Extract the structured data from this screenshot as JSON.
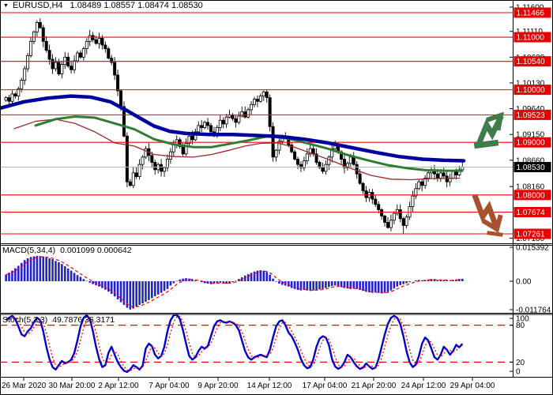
{
  "window": {
    "dropdown_glyph": "▼",
    "title_symbol": "EURUSD,H4",
    "title_ohlc": "1.08489 1.08557 1.08474 1.08530"
  },
  "indicators": {
    "macd_label": "MACD(5,34,4)",
    "macd_values": "0.001099 0.000642",
    "stoch_label": "Stoch(5,3,3)",
    "stoch_values": "49.7876 36.3171"
  },
  "colors": {
    "bg": "#ffffff",
    "border": "#000000",
    "axis_text": "#000000",
    "level_line": "#ff0000",
    "badge_bg": "#e60000",
    "badge_current_bg": "#000000",
    "badge_text": "#ffffff",
    "current_line": "#b4b4b4",
    "candle_outline": "#000000",
    "candle_bull": "#ffffff",
    "candle_bear": "#000000",
    "ma_blue": "#0000a0",
    "ma_green": "#2e7d32",
    "ma_red": "#9c2a2a",
    "macd_bar": "#2323cd",
    "macd_signal": "#ff0000",
    "stoch_k": "#0000cd",
    "stoch_d": "#ff0000",
    "stoch_level": "#ff0000",
    "arrow_up": "#3e7c49",
    "arrow_down": "#a8512e"
  },
  "chart_data": {
    "type": "candlestick",
    "symbol": "EURUSD",
    "timeframe": "H4",
    "main": {
      "ylim": [
        1.07081,
        1.11586
      ],
      "axis_ticks": [
        1.116,
        1.1111,
        1.1062,
        1.1013,
        1.0964,
        1.0915,
        1.0866,
        1.0816,
        1.0718
      ],
      "level_lines": [
        1.11466,
        1.11,
        1.1054,
        1.1,
        1.09523,
        1.09,
        1.08,
        1.07674,
        1.07261
      ],
      "current_price": 1.0853,
      "open_first": 1.098,
      "closes": [
        1.0985,
        1.0978,
        1.0992,
        1.0988,
        1.1002,
        1.1018,
        1.104,
        1.1065,
        1.1092,
        1.111,
        1.1128,
        1.1118,
        1.1092,
        1.1075,
        1.1058,
        1.104,
        1.1052,
        1.103,
        1.1048,
        1.1062,
        1.1045,
        1.1038,
        1.1055,
        1.107,
        1.1062,
        1.1078,
        1.1092,
        1.1103,
        1.1095,
        1.1088,
        1.1098,
        1.1085,
        1.1078,
        1.106,
        1.1052,
        1.1028,
        1.0998,
        1.0968,
        1.0912,
        1.0825,
        1.0818,
        1.0842,
        1.0835,
        1.0858,
        1.0872,
        1.0888,
        1.0875,
        1.0862,
        1.0848,
        1.0858,
        1.0845,
        1.0852,
        1.0868,
        1.0882,
        1.0895,
        1.0905,
        1.0892,
        1.0878,
        1.0898,
        1.0912,
        1.0905,
        1.092,
        1.0932,
        1.0928,
        1.0938,
        1.0932,
        1.092,
        1.0912,
        1.0928,
        1.0942,
        1.0935,
        1.0948,
        1.0952,
        1.0945,
        1.0938,
        1.095,
        1.0958,
        1.0948,
        1.0962,
        1.0972,
        1.0982,
        1.0978,
        1.0988,
        1.0996,
        1.0985,
        1.093,
        1.0872,
        1.0885,
        1.0902,
        1.0912,
        1.0908,
        1.0895,
        1.0882,
        1.0868,
        1.0858,
        1.0852,
        1.0865,
        1.0878,
        1.0888,
        1.0878,
        1.0862,
        1.0852,
        1.0845,
        1.0858,
        1.0872,
        1.0888,
        1.0895,
        1.0882,
        1.0868,
        1.0852,
        1.086,
        1.0872,
        1.0858,
        1.084,
        1.0822,
        1.0808,
        1.0795,
        1.0805,
        1.0792,
        1.0782,
        1.0772,
        1.076,
        1.0748,
        1.0738,
        1.0752,
        1.0765,
        1.0772,
        1.0755,
        1.0742,
        1.0758,
        1.0778,
        1.0798,
        1.0812,
        1.0825,
        1.0818,
        1.0832,
        1.0842,
        1.0848,
        1.084,
        1.0832,
        1.0842,
        1.0836,
        1.0825,
        1.0832,
        1.0845,
        1.0838,
        1.0848,
        1.0853
      ],
      "wick_overrides": {
        "10": {
          "h": 1.1132
        },
        "128": {
          "l": 1.0727
        }
      },
      "ma_blue": [
        [
          0,
          1.0965
        ],
        [
          30,
          1.0977
        ],
        [
          60,
          1.0984
        ],
        [
          90,
          1.0988
        ],
        [
          115,
          1.0986
        ],
        [
          140,
          1.0977
        ],
        [
          160,
          1.0961
        ],
        [
          175,
          1.0948
        ],
        [
          195,
          1.0931
        ],
        [
          215,
          1.0921
        ],
        [
          235,
          1.0917
        ],
        [
          265,
          1.0915
        ],
        [
          295,
          1.0915
        ],
        [
          325,
          1.0913
        ],
        [
          355,
          1.0911
        ],
        [
          385,
          1.0906
        ],
        [
          415,
          1.0899
        ],
        [
          445,
          1.089
        ],
        [
          475,
          1.0881
        ],
        [
          505,
          1.0873
        ],
        [
          535,
          1.0868
        ],
        [
          562,
          1.0866
        ],
        [
          587,
          1.0865
        ]
      ],
      "ma_green": [
        [
          45,
          1.0932
        ],
        [
          70,
          1.0944
        ],
        [
          95,
          1.0949
        ],
        [
          120,
          1.0947
        ],
        [
          145,
          1.0936
        ],
        [
          170,
          1.0925
        ],
        [
          195,
          1.0906
        ],
        [
          220,
          1.0896
        ],
        [
          245,
          1.0891
        ],
        [
          268,
          1.0891
        ],
        [
          290,
          1.0897
        ],
        [
          315,
          1.0904
        ],
        [
          340,
          1.0912
        ],
        [
          365,
          1.0907
        ],
        [
          390,
          1.0898
        ],
        [
          415,
          1.0888
        ],
        [
          440,
          1.0876
        ],
        [
          465,
          1.0866
        ],
        [
          490,
          1.0857
        ],
        [
          515,
          1.0851
        ],
        [
          540,
          1.0847
        ],
        [
          565,
          1.0846
        ],
        [
          585,
          1.0846
        ]
      ],
      "ma_red": [
        [
          18,
          1.0926
        ],
        [
          45,
          1.094
        ],
        [
          70,
          1.0944
        ],
        [
          95,
          1.0936
        ],
        [
          120,
          1.092
        ],
        [
          145,
          1.0899
        ],
        [
          170,
          1.0893
        ],
        [
          195,
          1.0877
        ],
        [
          220,
          1.0873
        ],
        [
          245,
          1.0872
        ],
        [
          268,
          1.0877
        ],
        [
          290,
          1.0885
        ],
        [
          310,
          1.0893
        ],
        [
          330,
          1.0898
        ],
        [
          350,
          1.0899
        ],
        [
          370,
          1.0892
        ],
        [
          395,
          1.0879
        ],
        [
          420,
          1.0865
        ],
        [
          445,
          1.085
        ],
        [
          470,
          1.0837
        ],
        [
          495,
          1.083
        ],
        [
          520,
          1.0829
        ],
        [
          545,
          1.0831
        ],
        [
          582,
          1.0832
        ]
      ]
    },
    "macd": {
      "ylim": [
        -0.011764,
        0.015392
      ],
      "axis_ticks": [
        "0.015392",
        "0.00",
        "-0.011764"
      ],
      "values": [
        0.003,
        0.0039,
        0.0048,
        0.0059,
        0.007,
        0.0083,
        0.0096,
        0.0104,
        0.011,
        0.0113,
        0.0115,
        0.0114,
        0.0112,
        0.0108,
        0.0104,
        0.01,
        0.0092,
        0.0086,
        0.0078,
        0.0068,
        0.0058,
        0.0048,
        0.0038,
        0.0028,
        0.002,
        0.001,
        0.0002,
        -0.0006,
        -0.0012,
        -0.0017,
        -0.0022,
        -0.0028,
        -0.0035,
        -0.0043,
        -0.0052,
        -0.0063,
        -0.0075,
        -0.0087,
        -0.0098,
        -0.011,
        -0.0117,
        -0.0113,
        -0.0105,
        -0.0098,
        -0.0092,
        -0.0085,
        -0.0078,
        -0.007,
        -0.0062,
        -0.0055,
        -0.0048,
        -0.004,
        -0.0032,
        -0.0018,
        -0.0008,
        0.0002,
        0.0008,
        0.0012,
        0.0014,
        0.0012,
        0.0008,
        0.0004,
        0,
        -0.0004,
        -0.0008,
        -0.001,
        -0.0012,
        -0.001,
        -0.0008,
        -0.0006,
        -0.0008,
        -0.001,
        -0.0008,
        -0.0004,
        0.0002,
        0.001,
        0.0018,
        0.0026,
        0.0032,
        0.0038,
        0.0044,
        0.0048,
        0.005,
        0.0048,
        0.0042,
        0.003,
        0.0012,
        -0.0002,
        -0.001,
        -0.0015,
        -0.0018,
        -0.0022,
        -0.0028,
        -0.0032,
        -0.0036,
        -0.0038,
        -0.0036,
        -0.0038,
        -0.004,
        -0.0038,
        -0.0036,
        -0.0034,
        -0.0032,
        -0.0028,
        -0.0024,
        -0.002,
        -0.0018,
        -0.002,
        -0.0024,
        -0.0028,
        -0.003,
        -0.0032,
        -0.003,
        -0.0032,
        -0.0036,
        -0.004,
        -0.0044,
        -0.0046,
        -0.0048,
        -0.0046,
        -0.0048,
        -0.005,
        -0.0048,
        -0.0044,
        -0.0038,
        -0.003,
        -0.0022,
        -0.0016,
        -0.0012,
        -0.0008,
        -0.0004,
        0,
        0.0004,
        0.0006,
        0.0004,
        0.0006,
        0.0008,
        0.001,
        0.0008,
        0.0006,
        0.0004,
        0.0006,
        0.0004,
        0.0002,
        0.0006,
        0.0008,
        0.001,
        0.0011
      ]
    },
    "stoch": {
      "ylim": [
        0,
        100
      ],
      "levels": [
        80,
        20
      ],
      "axis_ticks": [
        100,
        80,
        20,
        0
      ],
      "k": [
        88,
        92,
        95,
        90,
        78,
        65,
        62,
        70,
        75,
        85,
        92,
        88,
        70,
        45,
        25,
        12,
        8,
        15,
        22,
        18,
        20,
        24,
        35,
        55,
        78,
        92,
        96,
        90,
        70,
        45,
        25,
        12,
        15,
        35,
        45,
        32,
        20,
        12,
        6,
        4,
        8,
        15,
        12,
        8,
        14,
        42,
        50,
        46,
        32,
        26,
        30,
        45,
        70,
        88,
        96,
        97,
        90,
        72,
        50,
        30,
        24,
        28,
        38,
        45,
        42,
        46,
        62,
        78,
        86,
        88,
        85,
        84,
        86,
        84,
        80,
        72,
        55,
        38,
        28,
        24,
        28,
        30,
        32,
        30,
        28,
        40,
        60,
        78,
        86,
        88,
        80,
        68,
        62,
        52,
        40,
        25,
        15,
        10,
        12,
        25,
        45,
        58,
        62,
        60,
        48,
        25,
        13,
        9,
        12,
        20,
        32,
        28,
        20,
        13,
        9,
        11,
        18,
        13,
        9,
        11,
        25,
        45,
        65,
        82,
        92,
        95,
        92,
        82,
        62,
        38,
        20,
        12,
        16,
        30,
        50,
        60,
        55,
        42,
        28,
        24,
        32,
        45,
        40,
        32,
        38,
        48,
        44,
        49.7876
      ]
    },
    "time_axis": {
      "labels": [
        "26 Mar 2020",
        "30 Mar 20:00",
        "2 Apr 12:00",
        "7 Apr 04:00",
        "9 Apr 20:00",
        "14 Apr 12:00",
        "17 Apr 04:00",
        "21 Apr 20:00",
        "24 Apr 12:00",
        "29 Apr 04:00"
      ],
      "x_centers": [
        30,
        91,
        150,
        214,
        276,
        341,
        411,
        473,
        536,
        598
      ]
    },
    "annotations": [
      {
        "name": "up-trend-arrow-icon",
        "direction": "up",
        "color_key": "arrow_up"
      },
      {
        "name": "down-trend-arrow-icon",
        "direction": "down",
        "color_key": "arrow_down"
      }
    ]
  }
}
